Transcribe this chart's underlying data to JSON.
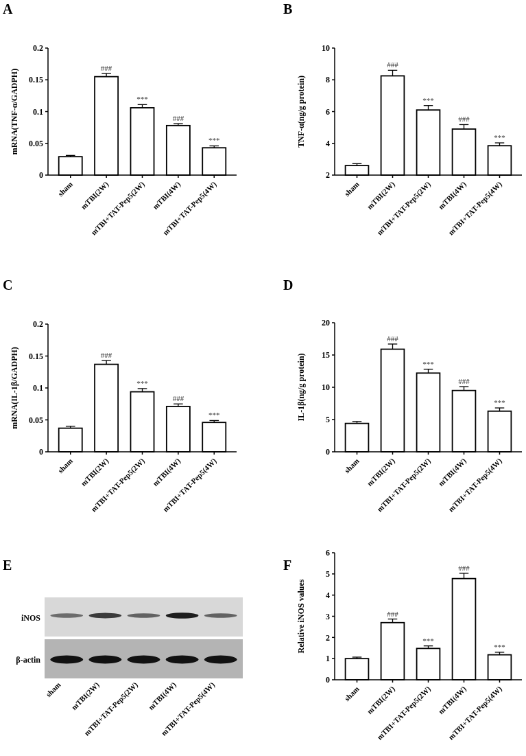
{
  "chart_data": [
    {
      "type": "bar",
      "title": "A",
      "ylabel": "mRNA(TNF-α/GADPH)",
      "categories": [
        "sham",
        "mTBI(2W)",
        "mTBI+TAT-Pep5(2W)",
        "mTBI(4W)",
        "mTBI+TAT-Pep5(4W)"
      ],
      "values": [
        0.029,
        0.155,
        0.106,
        0.078,
        0.043
      ],
      "errors": [
        0.002,
        0.005,
        0.005,
        0.003,
        0.003
      ],
      "color": "#ffffff",
      "ylim": [
        0,
        0.2
      ],
      "yticks": [
        0,
        0.05,
        0.1,
        0.15,
        0.2
      ],
      "grid": false,
      "annotations": [
        {
          "text": "###",
          "x": "mTBI(2W)",
          "y": 0.16
        },
        {
          "text": "***",
          "x": "mTBI+TAT-Pep5(2W)",
          "y": 0.111
        },
        {
          "text": "###",
          "x": "mTBI(4W)",
          "y": 0.081
        },
        {
          "text": "***",
          "x": "mTBI+TAT-Pep5(4W)",
          "y": 0.046
        }
      ]
    },
    {
      "type": "bar",
      "title": "B",
      "ylabel": "TNF-α(ng/g protein)",
      "categories": [
        "sham",
        "mTBI(2W)",
        "mTBI+TAT-Pep5(2W)",
        "mTBI(4W)",
        "mTBI+TAT-Pep5(4W)"
      ],
      "values": [
        2.6,
        8.25,
        6.1,
        4.9,
        3.85
      ],
      "errors": [
        0.12,
        0.35,
        0.28,
        0.28,
        0.18
      ],
      "color": "#ffffff",
      "ylim": [
        2,
        10
      ],
      "yticks": [
        2,
        4,
        6,
        8,
        10
      ],
      "grid": false,
      "annotations": [
        {
          "text": "###",
          "x": "mTBI(2W)",
          "y": 8.6
        },
        {
          "text": "***",
          "x": "mTBI+TAT-Pep5(2W)",
          "y": 6.38
        },
        {
          "text": "###",
          "x": "mTBI(4W)",
          "y": 5.18
        },
        {
          "text": "***",
          "x": "mTBI+TAT-Pep5(4W)",
          "y": 4.03
        }
      ]
    },
    {
      "type": "bar",
      "title": "C",
      "ylabel": "mRNA(IL-1β/GADPH)",
      "categories": [
        "sham",
        "mTBI(2W)",
        "mTBI+TAT-Pep5(2W)",
        "mTBI(4W)",
        "mTBI+TAT-Pep5(4W)"
      ],
      "values": [
        0.037,
        0.137,
        0.094,
        0.071,
        0.046
      ],
      "errors": [
        0.003,
        0.006,
        0.005,
        0.004,
        0.003
      ],
      "color": "#ffffff",
      "ylim": [
        0,
        0.2
      ],
      "yticks": [
        0,
        0.05,
        0.1,
        0.15,
        0.2
      ],
      "grid": false,
      "annotations": [
        {
          "text": "###",
          "x": "mTBI(2W)",
          "y": 0.143
        },
        {
          "text": "***",
          "x": "mTBI+TAT-Pep5(2W)",
          "y": 0.099
        },
        {
          "text": "###",
          "x": "mTBI(4W)",
          "y": 0.075
        },
        {
          "text": "***",
          "x": "mTBI+TAT-Pep5(4W)",
          "y": 0.049
        }
      ]
    },
    {
      "type": "bar",
      "title": "D",
      "ylabel": "IL-1β(ng/g protein)",
      "categories": [
        "sham",
        "mTBI(2W)",
        "mTBI+TAT-Pep5(2W)",
        "mTBI(4W)",
        "mTBI+TAT-Pep5(4W)"
      ],
      "values": [
        4.4,
        15.9,
        12.2,
        9.5,
        6.3
      ],
      "errors": [
        0.3,
        0.8,
        0.6,
        0.6,
        0.5
      ],
      "color": "#ffffff",
      "ylim": [
        0,
        20
      ],
      "yticks": [
        0,
        5,
        10,
        15,
        20
      ],
      "grid": false,
      "annotations": [
        {
          "text": "###",
          "x": "mTBI(2W)",
          "y": 16.7
        },
        {
          "text": "***",
          "x": "mTBI+TAT-Pep5(2W)",
          "y": 12.8
        },
        {
          "text": "###",
          "x": "mTBI(4W)",
          "y": 10.1
        },
        {
          "text": "***",
          "x": "mTBI+TAT-Pep5(4W)",
          "y": 6.8
        }
      ]
    },
    {
      "type": "other",
      "title": "E",
      "categories": [
        "sham",
        "mTBI(2W)",
        "mTBI+TAT-Pep5(2W)",
        "mTBI(4W)",
        "mTBI+TAT-Pep5(4W)"
      ],
      "annotations": [
        "iNOS",
        "β-actin"
      ]
    },
    {
      "type": "bar",
      "title": "F",
      "ylabel": "Relative iNOS values",
      "categories": [
        "sham",
        "mTBI(2W)",
        "mTBI+TAT-Pep5(2W)",
        "mTBI(4W)",
        "mTBI+TAT-Pep5(4W)"
      ],
      "values": [
        1.0,
        2.7,
        1.48,
        4.78,
        1.18
      ],
      "errors": [
        0.07,
        0.17,
        0.12,
        0.25,
        0.12
      ],
      "color": "#ffffff",
      "ylim": [
        0,
        6
      ],
      "yticks": [
        0,
        1,
        2,
        3,
        4,
        5,
        6
      ],
      "grid": false,
      "annotations": [
        {
          "text": "###",
          "x": "mTBI(2W)",
          "y": 2.87
        },
        {
          "text": "***",
          "x": "mTBI+TAT-Pep5(2W)",
          "y": 1.6
        },
        {
          "text": "###",
          "x": "mTBI(4W)",
          "y": 5.03
        },
        {
          "text": "***",
          "x": "mTBI+TAT-Pep5(4W)",
          "y": 1.3
        }
      ]
    }
  ]
}
